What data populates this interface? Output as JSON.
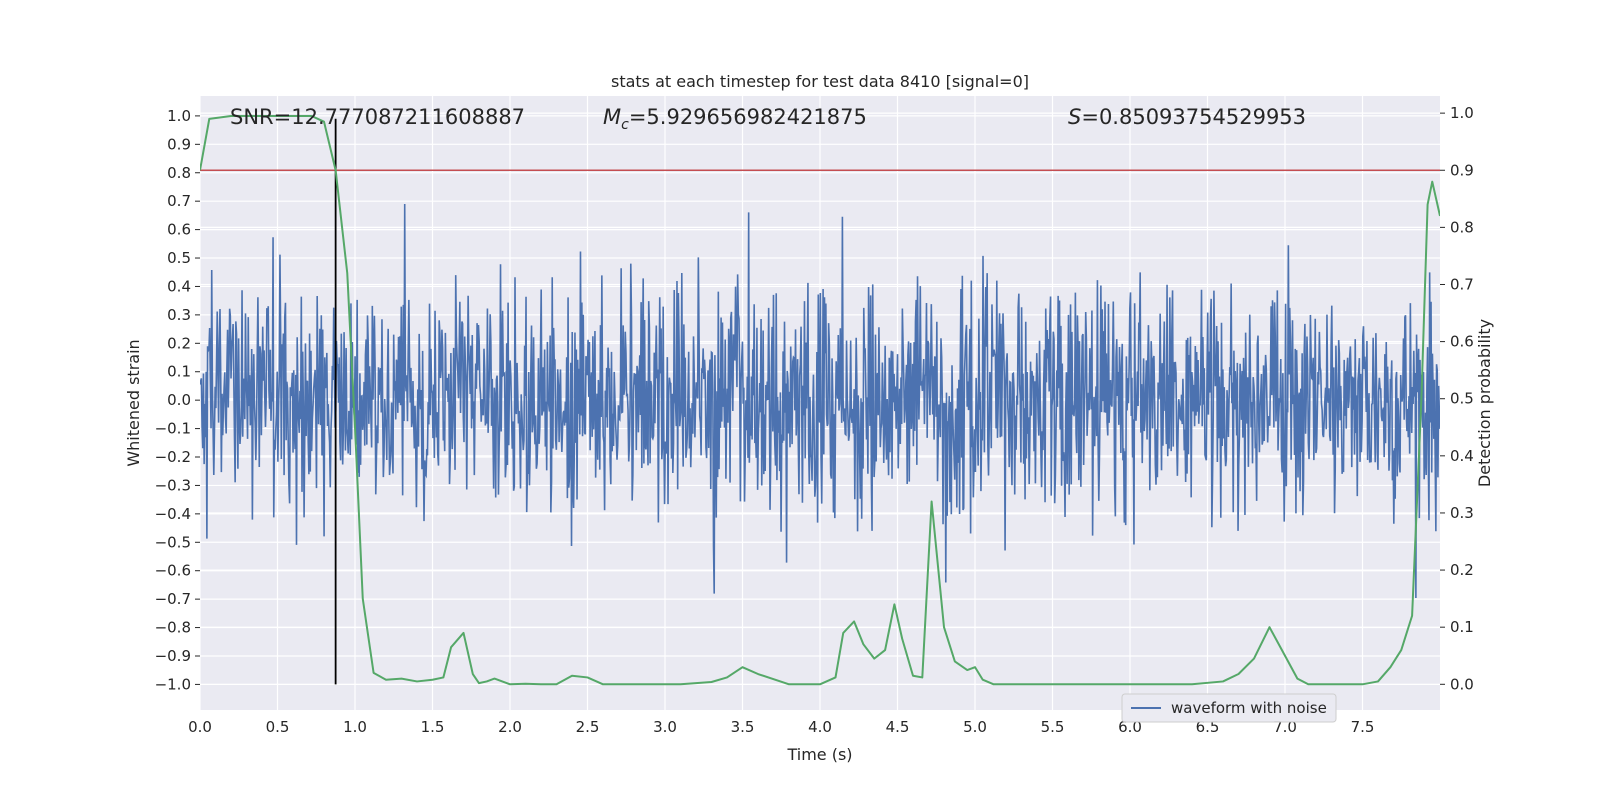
{
  "chart_data": {
    "type": "line",
    "title": "stats at each timestep for test data 8410 [signal=0]",
    "xlabel": "Time (s)",
    "ylabel_left": "Whitened strain",
    "ylabel_right": "Detection probability",
    "xlim": [
      0.0,
      8.0
    ],
    "ylim_left": [
      -1.09,
      1.07
    ],
    "ylim_right": [
      -0.045,
      1.03
    ],
    "x_ticks": [
      "0.0",
      "0.5",
      "1.0",
      "1.5",
      "2.0",
      "2.5",
      "3.0",
      "3.5",
      "4.0",
      "4.5",
      "5.0",
      "5.5",
      "6.0",
      "6.5",
      "7.0",
      "7.5"
    ],
    "y_ticks_left": [
      "1.0",
      "0.9",
      "0.8",
      "0.7",
      "0.6",
      "0.5",
      "0.4",
      "0.3",
      "0.2",
      "0.1",
      "0.0",
      "−0.1",
      "−0.2",
      "−0.3",
      "−0.4",
      "−0.5",
      "−0.6",
      "−0.7",
      "−0.8",
      "−0.9",
      "−1.0"
    ],
    "y_ticks_right": [
      "1.0",
      "0.9",
      "0.8",
      "0.7",
      "0.6",
      "0.5",
      "0.4",
      "0.3",
      "0.2",
      "0.1",
      "0.0"
    ],
    "grid": true,
    "legend": {
      "placement": "lower-right",
      "entries": [
        "waveform with noise"
      ]
    },
    "annotations": {
      "snr": "SNR=12.777087211608887",
      "mc_symbol": "M",
      "mc_sub": "c",
      "mc_value": "=5.929656982421875",
      "s_symbol": "S",
      "s_value": "=0.85093754529953"
    },
    "threshold_right": 0.9,
    "vertical_marker_time": 0.875,
    "waveform": {
      "name": "waveform with noise",
      "noise_std": 0.2,
      "samples": 1800,
      "range": [
        -1.0,
        0.98
      ]
    },
    "series": [
      {
        "name": "",
        "x": [
          0.0,
          0.06,
          0.2,
          0.4,
          0.6,
          0.72,
          0.8,
          0.875,
          0.95,
          1.0,
          1.05,
          1.12,
          1.2,
          1.3,
          1.4,
          1.5,
          1.57,
          1.62,
          1.7,
          1.76,
          1.8,
          1.85,
          1.9,
          2.0,
          2.1,
          2.2,
          2.3,
          2.4,
          2.5,
          2.6,
          2.7,
          2.8,
          3.0,
          3.1,
          3.2,
          3.3,
          3.4,
          3.5,
          3.6,
          3.8,
          3.9,
          4.0,
          4.1,
          4.15,
          4.22,
          4.28,
          4.35,
          4.42,
          4.48,
          4.53,
          4.6,
          4.66,
          4.72,
          4.8,
          4.87,
          4.95,
          5.0,
          5.05,
          5.12,
          5.2,
          5.4,
          5.6,
          5.8,
          6.0,
          6.2,
          6.4,
          6.6,
          6.7,
          6.8,
          6.9,
          7.0,
          7.08,
          7.15,
          7.3,
          7.5,
          7.6,
          7.68,
          7.75,
          7.82,
          7.88,
          7.92,
          7.95,
          8.0
        ],
        "values": [
          0.9,
          0.99,
          0.995,
          0.995,
          0.995,
          0.995,
          0.985,
          0.9,
          0.72,
          0.45,
          0.15,
          0.02,
          0.008,
          0.01,
          0.005,
          0.008,
          0.012,
          0.065,
          0.09,
          0.018,
          0.002,
          0.005,
          0.01,
          0.0,
          0.001,
          0.0,
          0.0,
          0.015,
          0.012,
          0.0,
          0.0,
          0.0,
          0.0,
          0.0,
          0.002,
          0.004,
          0.012,
          0.03,
          0.018,
          0.0,
          0.0,
          0.0,
          0.012,
          0.09,
          0.11,
          0.07,
          0.045,
          0.06,
          0.14,
          0.08,
          0.015,
          0.012,
          0.32,
          0.1,
          0.04,
          0.025,
          0.03,
          0.008,
          0.0,
          0.0,
          0.0,
          0.0,
          0.0,
          0.0,
          0.0,
          0.0,
          0.005,
          0.018,
          0.045,
          0.1,
          0.05,
          0.01,
          0.0,
          0.0,
          0.0,
          0.005,
          0.03,
          0.06,
          0.12,
          0.5,
          0.84,
          0.88,
          0.82
        ]
      }
    ],
    "colors": {
      "background": "#eaeaf2",
      "grid": "#ffffff",
      "waveform": "#4c72b0",
      "probability": "#55a868",
      "threshold": "#c44e52",
      "marker": "#000000"
    }
  }
}
